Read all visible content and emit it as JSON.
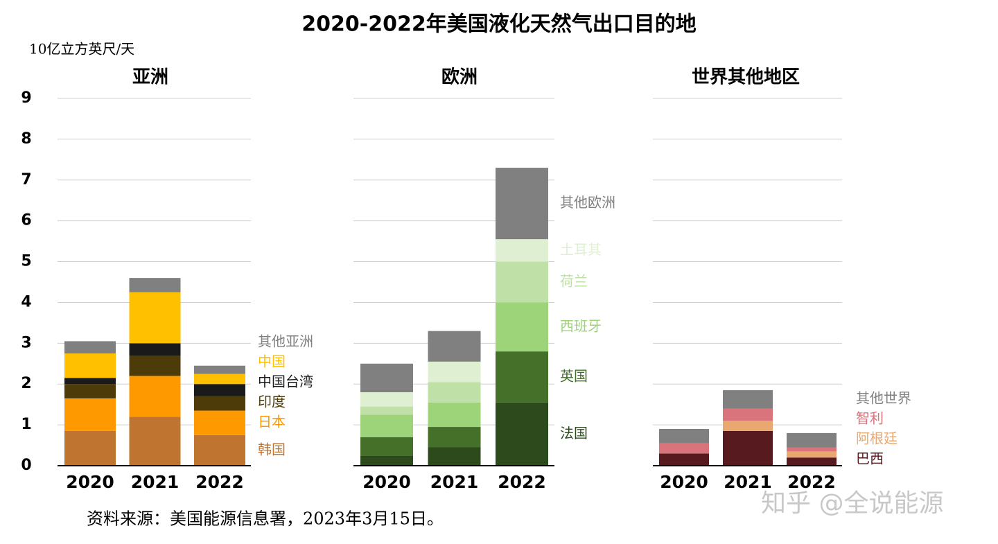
{
  "title": "2020-2022年美国液化天然气出口目的地",
  "y_unit": "10亿立方英尺/天",
  "source": "资料来源：美国能源信息署，2023年3月15日。",
  "watermark": "知乎 @全说能源",
  "chart_data": [
    {
      "type": "bar",
      "stacked": true,
      "title": "亚洲",
      "categories": [
        "2020",
        "2021",
        "2022"
      ],
      "ylim": [
        0,
        9
      ],
      "yticks": [
        0,
        1,
        2,
        3,
        4,
        5,
        6,
        7,
        8,
        9
      ],
      "grid": true,
      "series": [
        {
          "name": "韩国",
          "color": "#bf7430",
          "values": [
            0.85,
            1.2,
            0.75
          ]
        },
        {
          "name": "日本",
          "color": "#ff9900",
          "values": [
            0.8,
            1.0,
            0.6
          ]
        },
        {
          "name": "印度",
          "color": "#4d3b0a",
          "values": [
            0.35,
            0.5,
            0.35
          ]
        },
        {
          "name": "中国台湾",
          "color": "#1a1a1a",
          "values": [
            0.15,
            0.3,
            0.3
          ]
        },
        {
          "name": "中国",
          "color": "#ffc000",
          "values": [
            0.6,
            1.25,
            0.25
          ]
        },
        {
          "name": "其他亚洲",
          "color": "#808080",
          "values": [
            0.3,
            0.35,
            0.2
          ]
        }
      ]
    },
    {
      "type": "bar",
      "stacked": true,
      "title": "欧洲",
      "categories": [
        "2020",
        "2021",
        "2022"
      ],
      "ylim": [
        0,
        9
      ],
      "yticks": [
        0,
        1,
        2,
        3,
        4,
        5,
        6,
        7,
        8,
        9
      ],
      "grid": true,
      "series": [
        {
          "name": "法国",
          "color": "#2d4a1c",
          "values": [
            0.25,
            0.45,
            1.55
          ]
        },
        {
          "name": "英国",
          "color": "#44702a",
          "values": [
            0.45,
            0.5,
            1.25
          ]
        },
        {
          "name": "西班牙",
          "color": "#9dd47a",
          "values": [
            0.55,
            0.6,
            1.2
          ]
        },
        {
          "name": "荷兰",
          "color": "#bfe0a6",
          "values": [
            0.2,
            0.5,
            1.0
          ]
        },
        {
          "name": "土耳其",
          "color": "#dff0d2",
          "values": [
            0.35,
            0.5,
            0.55
          ]
        },
        {
          "name": "其他欧洲",
          "color": "#808080",
          "values": [
            0.7,
            0.75,
            1.75
          ]
        }
      ]
    },
    {
      "type": "bar",
      "stacked": true,
      "title": "世界其他地区",
      "categories": [
        "2020",
        "2021",
        "2022"
      ],
      "ylim": [
        0,
        9
      ],
      "yticks": [
        0,
        1,
        2,
        3,
        4,
        5,
        6,
        7,
        8,
        9
      ],
      "grid": true,
      "series": [
        {
          "name": "巴西",
          "color": "#561a1f",
          "values": [
            0.3,
            0.85,
            0.2
          ]
        },
        {
          "name": "阿根廷",
          "color": "#e8a870",
          "values": [
            0,
            0.25,
            0.15
          ]
        },
        {
          "name": "智利",
          "color": "#d9737c",
          "values": [
            0.25,
            0.3,
            0.1
          ]
        },
        {
          "name": "其他世界",
          "color": "#808080",
          "values": [
            0.35,
            0.45,
            0.35
          ]
        }
      ]
    }
  ]
}
